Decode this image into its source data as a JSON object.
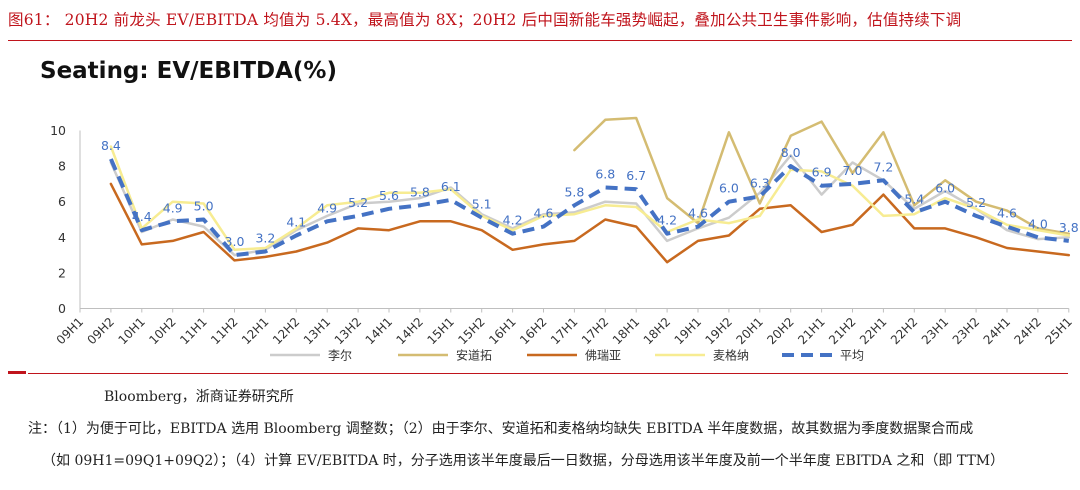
{
  "figure_title": "图61：  20H2 前龙头 EV/EBITDA 均值为 5.4X，最高值为 8X；20H2 后中国新能车强势崛起，叠加公共卫生事件影响，估值持续下调",
  "source": "Bloomberg，浙商证券研究所",
  "notes": [
    "注：（1）为便于可比，EBITDA 选用 Bloomberg 调整数；（2）由于李尔、安道拓和麦格纳均缺失 EBITDA 半年度数据，故其数据为季度数据聚合而成",
    "（如 09H1=09Q1+09Q2）；（4）计算 EV/EBITDA 时，分子选用该半年度最后一日数据，分母选用该半年度及前一个半年度 EBITDA 之和（即 TTM）"
  ],
  "chart_data": {
    "type": "line",
    "title": "Seating: EV/EBITDA(%)",
    "xlabel": "",
    "ylabel": "",
    "ylim": [
      0,
      10
    ],
    "yticks": [
      "0",
      "2",
      "4",
      "6",
      "8",
      "10"
    ],
    "grid": false,
    "legend_position": "bottom",
    "categories": [
      "09H1",
      "09H2",
      "10H1",
      "10H2",
      "11H1",
      "11H2",
      "12H1",
      "12H2",
      "13H1",
      "13H2",
      "14H1",
      "14H2",
      "15H1",
      "15H2",
      "16H1",
      "16H2",
      "17H1",
      "17H2",
      "18H1",
      "18H2",
      "19H1",
      "19H2",
      "20H1",
      "20H2",
      "21H1",
      "21H2",
      "22H1",
      "22H2",
      "23H1",
      "23H2",
      "24H1",
      "24H2",
      "25H1"
    ],
    "series": [
      {
        "name": "李尔",
        "color": "#cccccc",
        "style": "solid",
        "values": [
          null,
          8.2,
          4.3,
          5.0,
          4.6,
          3.0,
          3.3,
          4.4,
          5.2,
          5.9,
          6.0,
          6.2,
          6.8,
          5.3,
          4.5,
          5.3,
          5.4,
          6.0,
          5.9,
          3.8,
          4.5,
          5.1,
          6.5,
          8.6,
          6.4,
          8.2,
          7.2,
          5.6,
          6.6,
          5.6,
          4.4,
          3.9,
          4.0
        ]
      },
      {
        "name": "安道拓",
        "color": "#d4bc72",
        "style": "solid",
        "values": [
          null,
          null,
          null,
          null,
          null,
          null,
          null,
          null,
          null,
          null,
          null,
          null,
          null,
          null,
          null,
          null,
          8.9,
          10.6,
          10.7,
          6.2,
          4.8,
          9.9,
          5.9,
          9.7,
          10.5,
          7.6,
          9.9,
          5.8,
          7.2,
          6.0,
          5.5,
          4.5,
          4.2
        ]
      },
      {
        "name": "佛瑞亚",
        "color": "#c8691f",
        "style": "solid",
        "values": [
          null,
          7.0,
          3.6,
          3.8,
          4.3,
          2.7,
          2.9,
          3.2,
          3.7,
          4.5,
          4.4,
          4.9,
          4.9,
          4.4,
          3.3,
          3.6,
          3.8,
          5.0,
          4.6,
          2.6,
          3.8,
          4.1,
          5.6,
          5.8,
          4.3,
          4.7,
          6.4,
          4.5,
          4.5,
          4.0,
          3.4,
          3.2,
          3.0
        ]
      },
      {
        "name": "麦格纳",
        "color": "#f7ec92",
        "style": "solid",
        "values": [
          null,
          9.1,
          4.5,
          6.0,
          5.9,
          3.3,
          3.4,
          4.5,
          5.8,
          6.0,
          6.5,
          6.5,
          6.7,
          5.2,
          4.4,
          5.2,
          5.3,
          5.8,
          5.7,
          4.3,
          5.0,
          4.8,
          5.2,
          7.8,
          7.7,
          6.9,
          5.2,
          5.3,
          6.2,
          5.6,
          4.7,
          4.4,
          4.1
        ]
      },
      {
        "name": "平均",
        "color": "#4472c4",
        "style": "dashed",
        "values": [
          null,
          8.4,
          4.4,
          4.9,
          5.0,
          3.0,
          3.2,
          4.1,
          4.9,
          5.2,
          5.6,
          5.8,
          6.1,
          5.1,
          4.2,
          4.6,
          5.8,
          6.8,
          6.7,
          4.2,
          4.6,
          6.0,
          6.3,
          8.0,
          6.9,
          7.0,
          7.2,
          5.4,
          6.0,
          5.2,
          4.6,
          4.0,
          3.8
        ]
      }
    ],
    "data_labels": {
      "series": "平均",
      "labels": [
        "",
        "8.4",
        "4.4",
        "4.9",
        "5.0",
        "3.0",
        "3.2",
        "4.1",
        "4.9",
        "5.2",
        "5.6",
        "5.8",
        "6.1",
        "5.1",
        "4.2",
        "4.6",
        "5.8",
        "6.8",
        "6.7",
        "4.2",
        "4.6",
        "6.0",
        "6.3",
        "8.0",
        "6.9",
        "7.0",
        "7.2",
        "5.4",
        "6.0",
        "5.2",
        "4.6",
        "4.0",
        "3.8"
      ]
    }
  }
}
